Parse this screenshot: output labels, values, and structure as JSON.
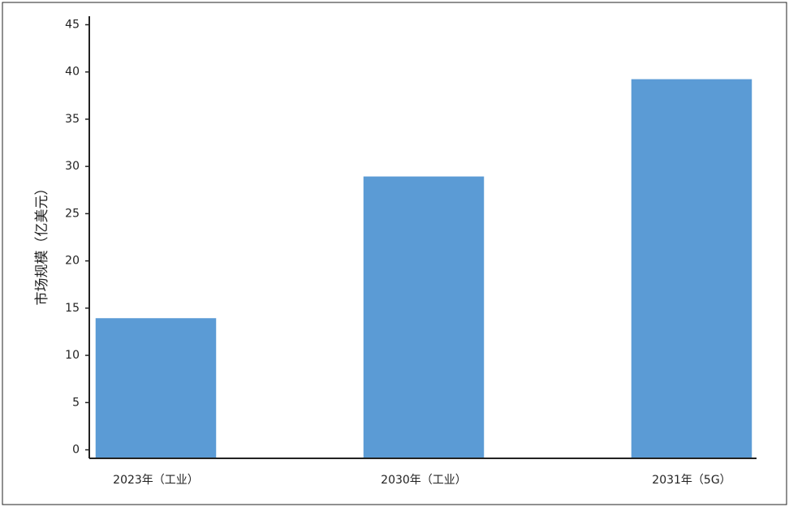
{
  "chart_data": {
    "type": "bar",
    "y_label": "市场规模（亿美元）",
    "categories": [
      "2023年（工业）",
      "2030年（工业）",
      "2031年（5G）"
    ],
    "values": [
      14,
      29,
      39.3
    ],
    "color": "#5b9bd5",
    "ylim": [
      -0.9,
      45.9
    ],
    "yticks": [
      0,
      5,
      10,
      15,
      20,
      25,
      30,
      35,
      40,
      45
    ]
  }
}
